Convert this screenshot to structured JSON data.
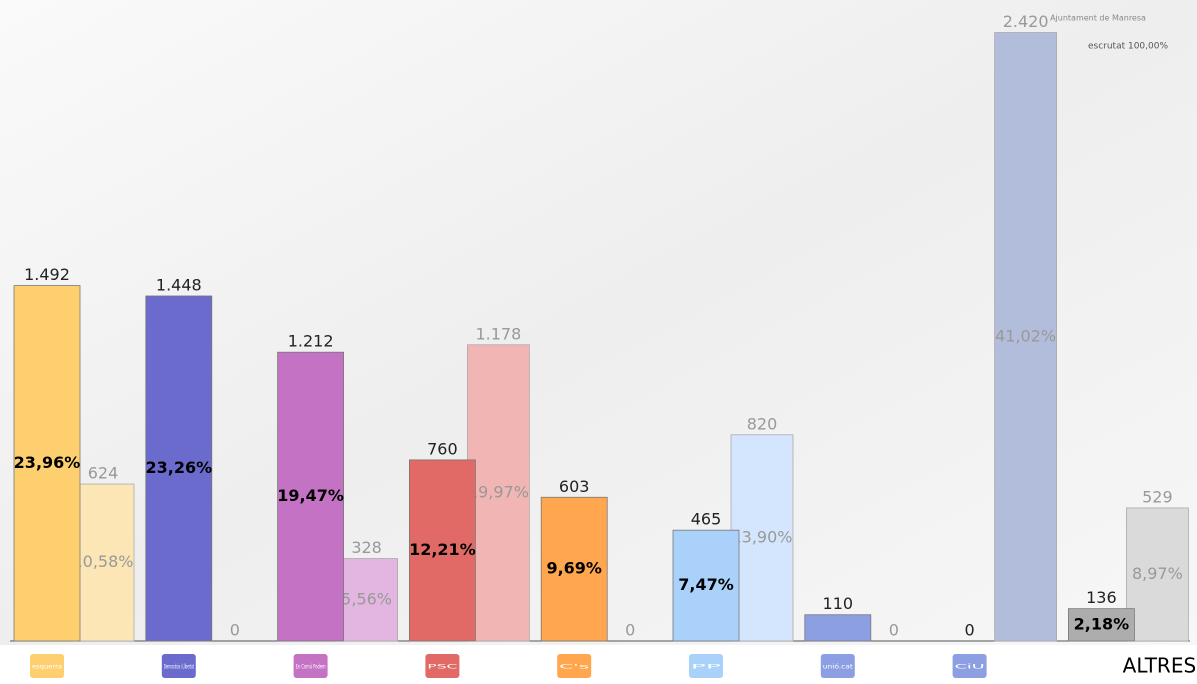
{
  "chart_data": {
    "type": "bar",
    "header": {
      "org": "Ajuntament de Manresa",
      "status": "escrutat 100,00%"
    },
    "categories": [
      "esquerra",
      "Democràcia i Llibertat",
      "En Comú Podem",
      "PSC",
      "C's",
      "PP",
      "unió.cat",
      "CiU",
      "ALTRES"
    ],
    "ylim": [
      0,
      42
    ],
    "series": [
      {
        "name": "current",
        "colors": [
          "#fdcf6f",
          "#6b6bcd",
          "#c472c4",
          "#e26a66",
          "#ffa64f",
          "#a9d1fa",
          "#8c9fe3",
          "#8c9fe3",
          "#adadad"
        ],
        "values": [
          1492,
          1448,
          1212,
          760,
          603,
          465,
          110,
          0,
          136
        ],
        "value_labels": [
          "1.492",
          "1.448",
          "1.212",
          "760",
          "603",
          "465",
          "110",
          "0",
          "136"
        ],
        "shares": [
          23.96,
          23.26,
          19.47,
          12.21,
          9.69,
          7.47,
          1.77,
          0,
          2.18
        ],
        "share_labels": [
          "23,96%",
          "23,26%",
          "19,47%",
          "12,21%",
          "9,69%",
          "7,47%",
          null,
          null,
          "2,18%"
        ]
      },
      {
        "name": "previous",
        "colors": [
          "#fde6b5",
          "#c4c4ea",
          "#e2b6e0",
          "#f1b5b3",
          "#ffd9b0",
          "#d3e6fd",
          "#d0d8f4",
          "#b1bddb",
          "#dadada"
        ],
        "values": [
          624,
          0,
          328,
          1178,
          0,
          820,
          0,
          2420,
          529
        ],
        "value_labels": [
          "624",
          "0",
          "328",
          "1.178",
          "0",
          "820",
          "0",
          "2.420",
          "529"
        ],
        "shares": [
          10.58,
          0,
          5.56,
          19.97,
          0,
          13.9,
          0,
          41.02,
          8.97
        ],
        "share_labels": [
          "10,58%",
          null,
          "5,56%",
          "19,97%",
          null,
          "13,90%",
          null,
          "41,02%",
          "8,97%"
        ]
      }
    ]
  }
}
